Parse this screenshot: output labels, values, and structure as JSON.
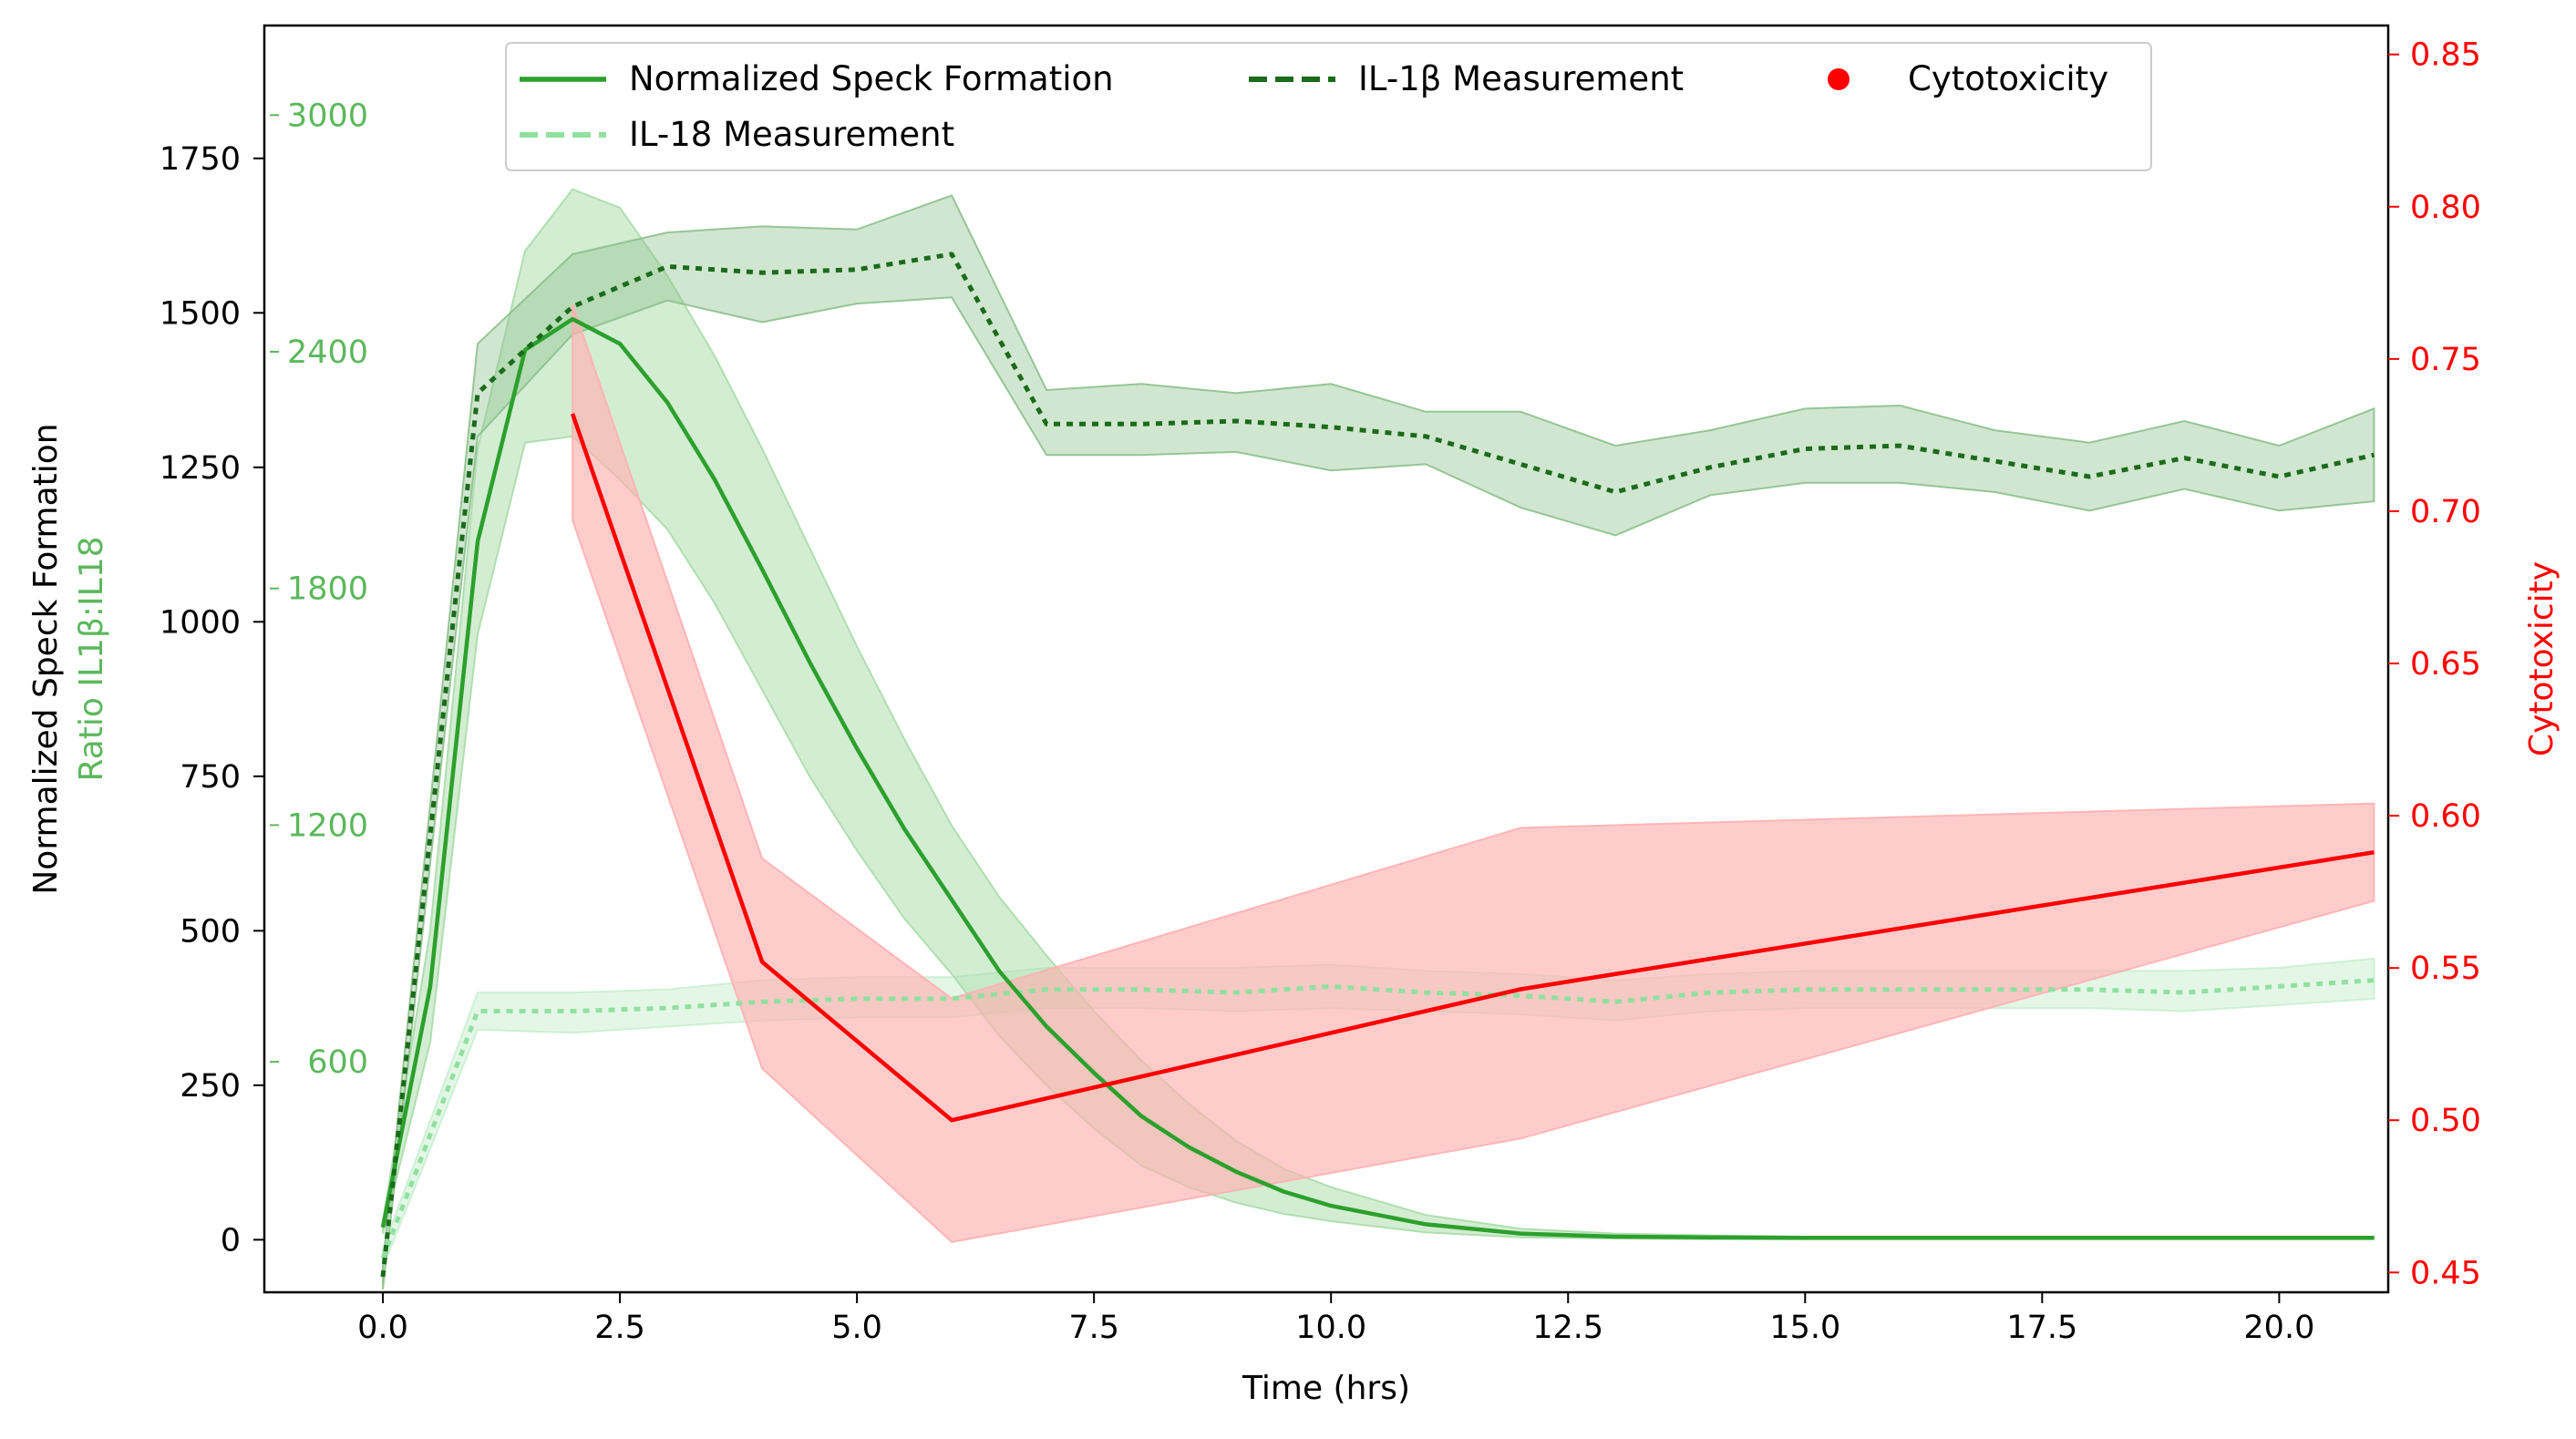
{
  "chart_data": {
    "type": "line",
    "xlabel": "Time (hrs)",
    "ylabel_left": "Normalized Speck Formation",
    "ylabel_left_secondary": "Ratio IL1β:IL18",
    "ylabel_right": "Cytotoxicity",
    "xlim": [
      -1.25,
      21.15
    ],
    "ylim_left": [
      -85,
      1965
    ],
    "ylim_right": [
      0.4435,
      0.8595
    ],
    "x_ticks": [
      0,
      2.5,
      5,
      7.5,
      10,
      12.5,
      15,
      17.5,
      20
    ],
    "x_tick_labels": [
      "0.0",
      "2.5",
      "5.0",
      "7.5",
      "10.0",
      "12.5",
      "15.0",
      "17.5",
      "20.0"
    ],
    "y_left_ticks": [
      0,
      250,
      500,
      750,
      1000,
      1250,
      1500,
      1750
    ],
    "y_left_tick_labels": [
      "0",
      "250",
      "500",
      "750",
      "1000",
      "1250",
      "1500",
      "1750"
    ],
    "ratio_ticks": [
      {
        "value": 3000,
        "y_left": 1820,
        "label": "3000"
      },
      {
        "value": 2400,
        "y_left": 1437,
        "label": "2400"
      },
      {
        "value": 1800,
        "y_left": 1054,
        "label": "1800"
      },
      {
        "value": 1200,
        "y_left": 671,
        "label": "1200"
      },
      {
        "value": 600,
        "y_left": 288,
        "label": "600"
      }
    ],
    "y_right_ticks": [
      0.45,
      0.5,
      0.55,
      0.6,
      0.65,
      0.7,
      0.75,
      0.8,
      0.85
    ],
    "y_right_tick_labels": [
      "0.45",
      "0.50",
      "0.55",
      "0.60",
      "0.65",
      "0.70",
      "0.75",
      "0.80",
      "0.85"
    ],
    "legend": {
      "placement": "upper-center",
      "entries": [
        {
          "label": "Normalized Speck Formation",
          "style": "solid",
          "color": "#2ca02c"
        },
        {
          "label": "IL-1β Measurement",
          "style": "dashed",
          "color": "#1a6b1a"
        },
        {
          "label": "Cytotoxicity",
          "style": "marker",
          "color": "#ff0000"
        },
        {
          "label": "IL-18 Measurement",
          "style": "dashed",
          "color": "#90e0a0"
        }
      ]
    },
    "series": [
      {
        "name": "Normalized Speck Formation",
        "axis": "left",
        "color": "#2ca02c",
        "fill": "#a8dba8",
        "x": [
          0,
          0.5,
          1,
          1.5,
          2,
          2.5,
          3,
          3.5,
          4,
          4.5,
          5,
          5.5,
          6,
          6.5,
          7,
          7.5,
          8,
          8.5,
          9,
          9.5,
          10,
          11,
          12,
          13,
          14,
          15,
          16,
          17,
          18,
          19,
          20,
          21
        ],
        "y": [
          20,
          410,
          1130,
          1440,
          1490,
          1450,
          1355,
          1230,
          1085,
          935,
          795,
          665,
          550,
          435,
          345,
          270,
          200,
          150,
          110,
          78,
          55,
          25,
          10,
          5,
          4,
          3,
          3,
          3,
          3,
          3,
          3,
          3
        ],
        "upper": [
          30,
          500,
          1280,
          1600,
          1700,
          1670,
          1560,
          1430,
          1280,
          1120,
          960,
          810,
          670,
          555,
          460,
          370,
          290,
          220,
          160,
          115,
          85,
          40,
          18,
          10,
          7,
          5,
          5,
          5,
          5,
          5,
          5,
          5
        ],
        "lower": [
          10,
          320,
          980,
          1290,
          1300,
          1230,
          1150,
          1030,
          890,
          750,
          630,
          520,
          430,
          330,
          250,
          180,
          120,
          85,
          60,
          42,
          30,
          12,
          4,
          2,
          1,
          1,
          1,
          1,
          1,
          1,
          1,
          1
        ]
      },
      {
        "name": "IL-1β Measurement",
        "axis": "left",
        "color": "#1a6b1a",
        "fill": "#8cc08c",
        "x": [
          0,
          1,
          2,
          3,
          4,
          5,
          6,
          7,
          8,
          9,
          10,
          11,
          12,
          13,
          14,
          15,
          16,
          17,
          18,
          19,
          20,
          21
        ],
        "y": [
          -60,
          1370,
          1510,
          1575,
          1565,
          1570,
          1595,
          1320,
          1320,
          1325,
          1315,
          1300,
          1255,
          1210,
          1250,
          1280,
          1285,
          1260,
          1235,
          1265,
          1235,
          1270
        ],
        "upper": [
          -40,
          1450,
          1595,
          1630,
          1640,
          1635,
          1690,
          1375,
          1385,
          1370,
          1385,
          1340,
          1340,
          1285,
          1310,
          1345,
          1350,
          1310,
          1290,
          1325,
          1285,
          1345
        ],
        "lower": [
          -80,
          1300,
          1465,
          1520,
          1485,
          1515,
          1525,
          1270,
          1270,
          1275,
          1245,
          1255,
          1185,
          1140,
          1205,
          1225,
          1225,
          1210,
          1180,
          1215,
          1180,
          1195
        ]
      },
      {
        "name": "IL-18 Measurement",
        "axis": "left",
        "color": "#90e0a0",
        "fill": "#c9efd0",
        "x": [
          0,
          1,
          2,
          3,
          4,
          5,
          6,
          7,
          8,
          9,
          10,
          11,
          12,
          13,
          14,
          15,
          16,
          17,
          18,
          19,
          20,
          21
        ],
        "y": [
          -30,
          370,
          370,
          375,
          385,
          390,
          390,
          405,
          405,
          400,
          410,
          400,
          395,
          385,
          400,
          405,
          405,
          405,
          405,
          400,
          410,
          420
        ],
        "upper": [
          -15,
          400,
          400,
          405,
          420,
          425,
          425,
          440,
          440,
          440,
          445,
          435,
          430,
          420,
          430,
          435,
          435,
          435,
          435,
          435,
          440,
          455
        ],
        "lower": [
          -45,
          340,
          335,
          345,
          355,
          360,
          360,
          375,
          375,
          370,
          375,
          370,
          365,
          355,
          370,
          375,
          375,
          375,
          375,
          370,
          380,
          390
        ]
      },
      {
        "name": "Cytotoxicity",
        "axis": "right",
        "color": "#ff0000",
        "fill": "#ffb0b0",
        "x": [
          2,
          4,
          6,
          12,
          21
        ],
        "y": [
          0.732,
          0.552,
          0.5,
          0.543,
          0.588
        ],
        "upper": [
          0.768,
          0.586,
          0.54,
          0.596,
          0.604
        ],
        "lower": [
          0.697,
          0.517,
          0.46,
          0.494,
          0.572
        ]
      }
    ]
  }
}
